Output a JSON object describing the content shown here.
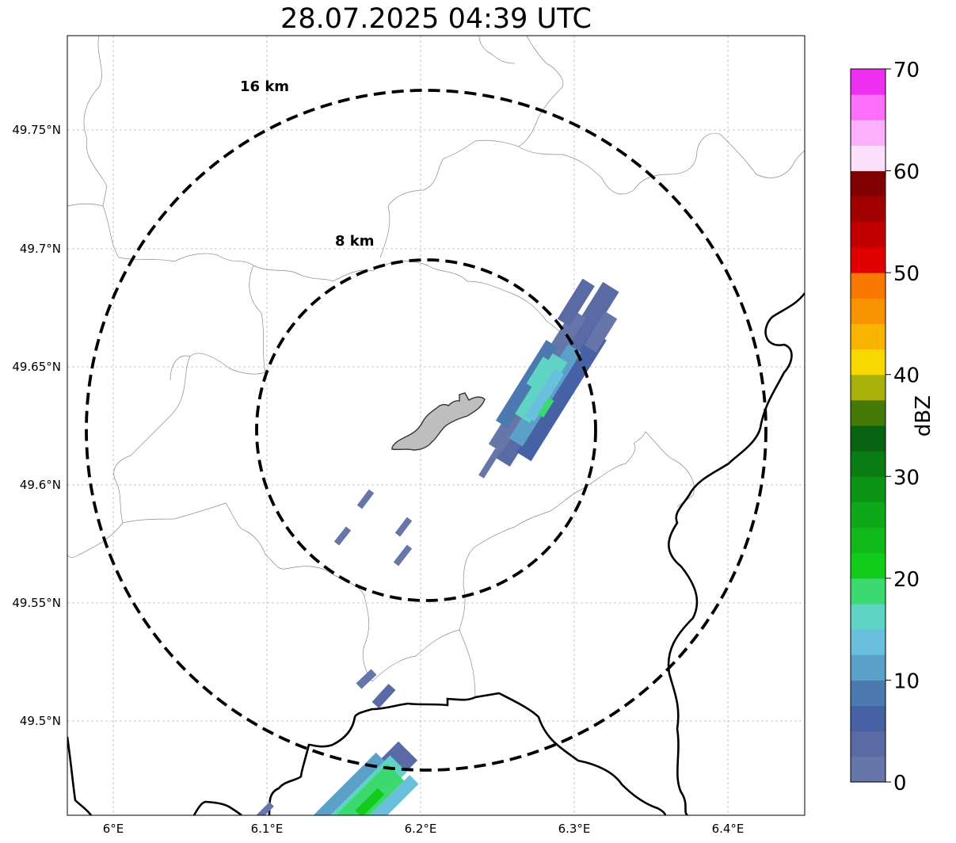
{
  "title": "28.07.2025 04:39 UTC",
  "colorbar": {
    "label": "dBZ",
    "ticks": [
      "0",
      "10",
      "20",
      "30",
      "40",
      "50",
      "60",
      "70"
    ],
    "colors": [
      "#6676a8",
      "#5a6aa4",
      "#4662a4",
      "#4c7ab0",
      "#5aa0c8",
      "#68c0dc",
      "#60d4c4",
      "#3cd870",
      "#12cc1c",
      "#10b81a",
      "#0ea818",
      "#0c9416",
      "#0a7c14",
      "#086412",
      "#467a06",
      "#a8b00a",
      "#f8d800",
      "#f8b400",
      "#f89400",
      "#f87800",
      "#e00000",
      "#c00000",
      "#a00000",
      "#800000",
      "#fce0fc",
      "#fcb0fc",
      "#fc70fc",
      "#f030f0"
    ]
  },
  "axes": {
    "lat_ticks": [
      "49.75°N",
      "49.7°N",
      "49.65°N",
      "49.6°N",
      "49.55°N",
      "49.5°N"
    ],
    "lon_ticks": [
      "6°E",
      "6.1°E",
      "6.2°E",
      "6.3°E",
      "6.4°E"
    ]
  },
  "rings": [
    {
      "label": "8 km",
      "radius_km": 8
    },
    {
      "label": "16 km",
      "radius_km": 16
    }
  ],
  "map": {
    "extent_lon": [
      5.97,
      6.45
    ],
    "extent_lat": [
      49.46,
      49.79
    ],
    "center_lon": 6.2,
    "center_lat": 49.623,
    "gridlines": true,
    "city_fill": "#bebebe",
    "border_color": "#000000",
    "admin_color": "#999999"
  }
}
